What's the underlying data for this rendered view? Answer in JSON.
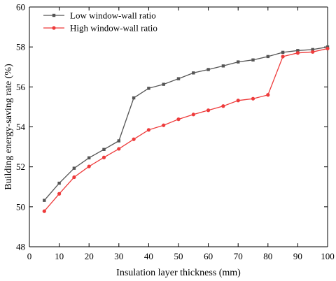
{
  "chart_data": {
    "type": "line",
    "xlabel": "Insulation layer thickness (mm)",
    "ylabel": "Building energy-saving rate (%)",
    "xlim": [
      0,
      100
    ],
    "ylim": [
      48,
      60
    ],
    "xticks": [
      0,
      10,
      20,
      30,
      40,
      50,
      60,
      70,
      80,
      90,
      100
    ],
    "yticks": [
      48,
      50,
      52,
      54,
      56,
      58,
      60
    ],
    "grid": false,
    "legend_position": "top-left",
    "x": [
      5,
      10,
      15,
      20,
      25,
      30,
      35,
      40,
      45,
      50,
      55,
      60,
      65,
      70,
      75,
      80,
      85,
      90,
      95,
      100
    ],
    "series": [
      {
        "name": "Low window-wall ratio",
        "color": "#555555",
        "marker": "square",
        "values": [
          50.32,
          51.18,
          51.93,
          52.45,
          52.87,
          53.3,
          55.45,
          55.93,
          56.13,
          56.41,
          56.7,
          56.87,
          57.05,
          57.25,
          57.35,
          57.52,
          57.73,
          57.82,
          57.87,
          58.0
        ]
      },
      {
        "name": "High window-wall ratio",
        "color": "#ee3b3b",
        "marker": "circle",
        "values": [
          49.78,
          50.65,
          51.48,
          52.02,
          52.47,
          52.9,
          53.38,
          53.85,
          54.08,
          54.38,
          54.62,
          54.83,
          55.04,
          55.32,
          55.41,
          55.6,
          57.52,
          57.7,
          57.75,
          57.92
        ]
      }
    ]
  }
}
